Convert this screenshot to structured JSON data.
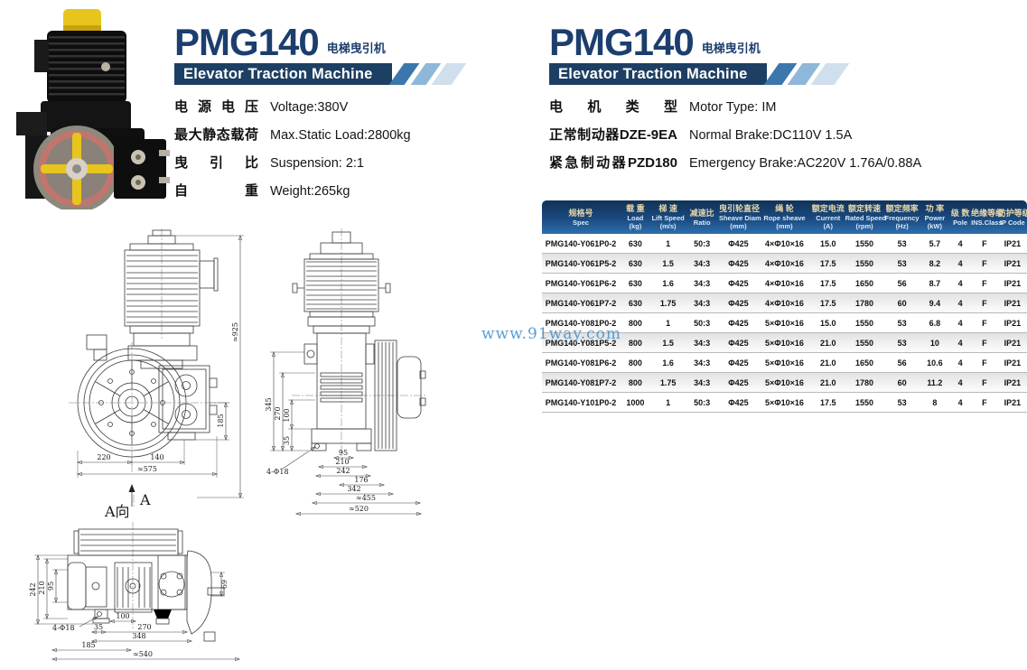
{
  "document": {
    "watermark": "www.91way.com"
  },
  "left_panel": {
    "title": "PMG140",
    "subtitle": "电梯曳引机",
    "banner": "Elevator Traction Machine",
    "specs": [
      {
        "label": "电源电压",
        "value": "Voltage:380V"
      },
      {
        "label": "最大静态载荷",
        "value": "Max.Static Load:2800kg"
      },
      {
        "label": "曳引比",
        "value": "Suspension: 2:1"
      },
      {
        "label": "自重",
        "value": "Weight:265kg"
      }
    ]
  },
  "right_panel": {
    "title": "PMG140",
    "subtitle": "电梯曳引机",
    "banner": "Elevator Traction Machine",
    "specs": [
      {
        "label": "电机类型",
        "value": "Motor Type: IM"
      },
      {
        "label": "正常制动器DZE-9EA",
        "value": "Normal Brake:DC110V 1.5A"
      },
      {
        "label": "紧急制动器PZD180",
        "value": "Emergency Brake:AC220V 1.76A/0.88A"
      }
    ]
  },
  "table": {
    "columns": [
      {
        "cn": "规格号",
        "en": "Spec",
        "unit": ""
      },
      {
        "cn": "载 重",
        "en": "Load",
        "unit": "(kg)"
      },
      {
        "cn": "梯 速",
        "en": "Lift Speed",
        "unit": "(m/s)"
      },
      {
        "cn": "减速比",
        "en": "Ratio",
        "unit": ""
      },
      {
        "cn": "曳引轮直径",
        "en": "Sheave Diam",
        "unit": "(mm)"
      },
      {
        "cn": "绳 轮",
        "en": "Rope sheave",
        "unit": "(mm)"
      },
      {
        "cn": "额定电流",
        "en": "Current",
        "unit": "(A)"
      },
      {
        "cn": "额定转速",
        "en": "Rated Speed",
        "unit": "(rpm)"
      },
      {
        "cn": "额定频率",
        "en": "Frequency",
        "unit": "(Hz)"
      },
      {
        "cn": "功 率",
        "en": "Power",
        "unit": "(kW)"
      },
      {
        "cn": "级 数",
        "en": "Pole",
        "unit": ""
      },
      {
        "cn": "绝缘等级",
        "en": "INS.Class",
        "unit": ""
      },
      {
        "cn": "防护等级",
        "en": "IP Code",
        "unit": ""
      }
    ],
    "rows": [
      [
        "PMG140-Y061P0-2",
        "630",
        "1",
        "50:3",
        "Φ425",
        "4×Φ10×16",
        "15.0",
        "1550",
        "53",
        "5.7",
        "4",
        "F",
        "IP21"
      ],
      [
        "PMG140-Y061P5-2",
        "630",
        "1.5",
        "34:3",
        "Φ425",
        "4×Φ10×16",
        "17.5",
        "1550",
        "53",
        "8.2",
        "4",
        "F",
        "IP21"
      ],
      [
        "PMG140-Y061P6-2",
        "630",
        "1.6",
        "34:3",
        "Φ425",
        "4×Φ10×16",
        "17.5",
        "1650",
        "56",
        "8.7",
        "4",
        "F",
        "IP21"
      ],
      [
        "PMG140-Y061P7-2",
        "630",
        "1.75",
        "34:3",
        "Φ425",
        "4×Φ10×16",
        "17.5",
        "1780",
        "60",
        "9.4",
        "4",
        "F",
        "IP21"
      ],
      [
        "PMG140-Y081P0-2",
        "800",
        "1",
        "50:3",
        "Φ425",
        "5×Φ10×16",
        "15.0",
        "1550",
        "53",
        "6.8",
        "4",
        "F",
        "IP21"
      ],
      [
        "PMG140-Y081P5-2",
        "800",
        "1.5",
        "34:3",
        "Φ425",
        "5×Φ10×16",
        "21.0",
        "1550",
        "53",
        "10",
        "4",
        "F",
        "IP21"
      ],
      [
        "PMG140-Y081P6-2",
        "800",
        "1.6",
        "34:3",
        "Φ425",
        "5×Φ10×16",
        "21.0",
        "1650",
        "56",
        "10.6",
        "4",
        "F",
        "IP21"
      ],
      [
        "PMG140-Y081P7-2",
        "800",
        "1.75",
        "34:3",
        "Φ425",
        "5×Φ10×16",
        "21.0",
        "1780",
        "60",
        "11.2",
        "4",
        "F",
        "IP21"
      ],
      [
        "PMG140-Y101P0-2",
        "1000",
        "1",
        "50:3",
        "Φ425",
        "5×Φ10×16",
        "17.5",
        "1550",
        "53",
        "8",
        "4",
        "F",
        "IP21"
      ]
    ]
  },
  "drawings": {
    "front_view": {
      "w_left": "220",
      "w_right": "140",
      "w_total": "≈575",
      "h_center": "185",
      "h_total": "≈925",
      "section_arrow": "A"
    },
    "side_view": {
      "v_345": "345",
      "v_270": "270",
      "v_100": "100",
      "v_35": "35",
      "hole": "4-Φ18",
      "w_95": "95",
      "w_210": "210",
      "w_242": "242",
      "w_176": "176",
      "w_342": "342",
      "w_455": "≈455",
      "w_520": "≈520"
    },
    "top_view": {
      "label": "A向",
      "v_242": "242",
      "v_210": "210",
      "v_95": "95",
      "v_69": "69",
      "hole": "4-Φ18",
      "w_100": "100",
      "w_35": "35",
      "w_270": "270",
      "w_348": "348",
      "w_185": "185",
      "w_540": "≈540"
    }
  }
}
